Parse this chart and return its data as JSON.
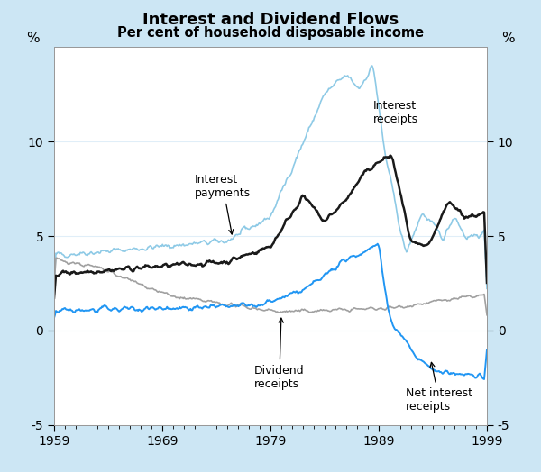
{
  "title": "Interest and Dividend Flows",
  "subtitle": "Per cent of household disposable income",
  "ylabel_left": "%",
  "ylabel_right": "%",
  "xlim": [
    1959,
    1999
  ],
  "ylim": [
    -5,
    15
  ],
  "yticks": [
    -5,
    0,
    5,
    10
  ],
  "xticks": [
    1959,
    1969,
    1979,
    1989,
    1999
  ],
  "background_color": "#cce6f4",
  "plot_background": "#ffffff",
  "grid_color": "#e0eef8",
  "colors": {
    "interest_receipts": "#8ecae6",
    "interest_payments": "#1a1a1a",
    "dividend_receipts": "#a0a0a0",
    "net_interest": "#2196f3"
  },
  "linewidths": {
    "interest_receipts": 1.2,
    "interest_payments": 1.8,
    "dividend_receipts": 1.2,
    "net_interest": 1.4
  }
}
